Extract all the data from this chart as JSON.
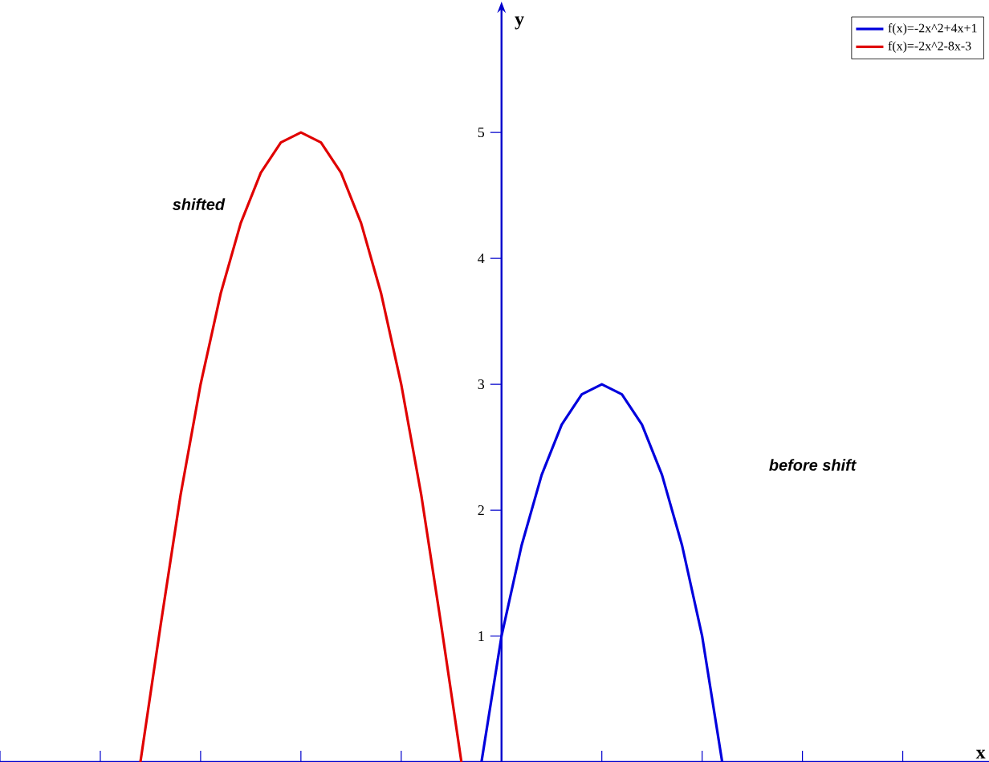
{
  "chart_data": {
    "type": "line",
    "xlabel": "x",
    "ylabel": "y",
    "categories": [
      null,
      null,
      null,
      null,
      null,
      null,
      null,
      null,
      null,
      null,
      null,
      null,
      null,
      null,
      null,
      null,
      null,
      null,
      null,
      null,
      null,
      null,
      null,
      null,
      null,
      null,
      null,
      null,
      null,
      null,
      null,
      null,
      null,
      null,
      null,
      null,
      null,
      null,
      null,
      null,
      null,
      null,
      null,
      null,
      null,
      null,
      null,
      null,
      null,
      null
    ],
    "ylim": [
      0,
      5.95
    ],
    "yticks": [
      1,
      2,
      3,
      4,
      5
    ],
    "legend": "top right",
    "series": [
      {
        "name": "f(x)=-2x^2+4x+1",
        "color": "#0000dd",
        "values": [
          null,
          null,
          null,
          null,
          null,
          null,
          null,
          null,
          null,
          null,
          null,
          null,
          null,
          null,
          null,
          null,
          null,
          null,
          null,
          null,
          null,
          null,
          null,
          null,
          0,
          1,
          1.72,
          2.28,
          2.68,
          2.92,
          3,
          2.92,
          2.68,
          2.28,
          1.72,
          1,
          0,
          null,
          null,
          null,
          null,
          null,
          null,
          null,
          null,
          null,
          null,
          null,
          null,
          null
        ]
      },
      {
        "name": "f(x)=-2x^2-8x-3",
        "color": "#e00000",
        "values": [
          null,
          null,
          null,
          null,
          null,
          null,
          null,
          0,
          1.08,
          2.12,
          3,
          3.72,
          4.28,
          4.68,
          4.92,
          5,
          4.92,
          4.68,
          4.28,
          3.72,
          3,
          2.12,
          1.08,
          0,
          null,
          null,
          null,
          null,
          null,
          null,
          null,
          null,
          null,
          null,
          null,
          null,
          null,
          null,
          null,
          null,
          null,
          null,
          null,
          null,
          null,
          null,
          null,
          null,
          null,
          null
        ]
      }
    ],
    "annotations": [
      "shifted",
      "before shift"
    ]
  }
}
